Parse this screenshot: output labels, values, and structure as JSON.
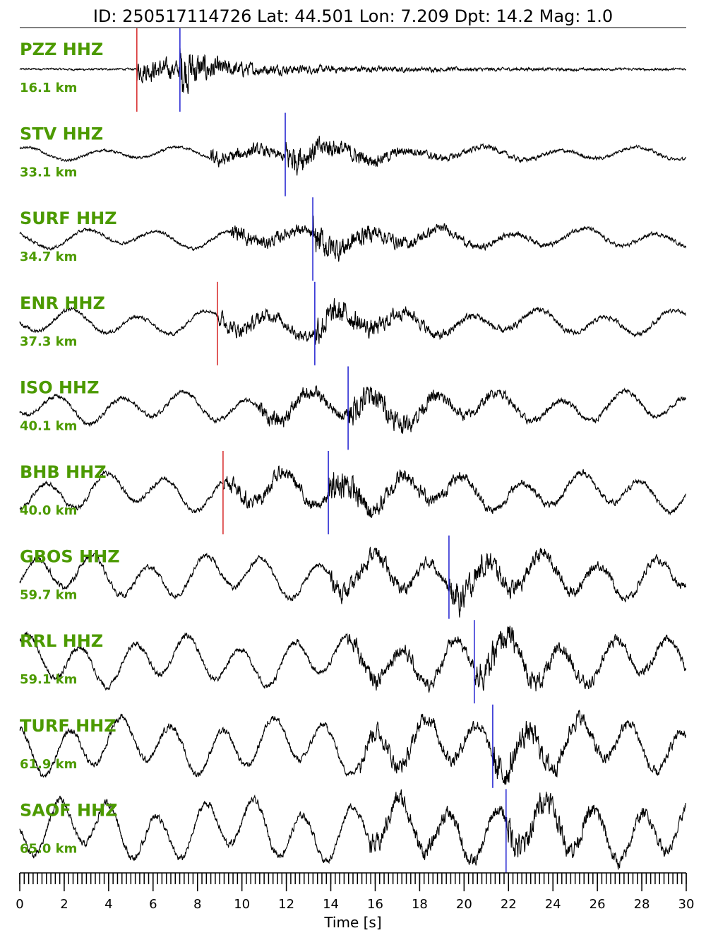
{
  "chart_data": {
    "type": "seismogram",
    "title": "ID: 250517114726 Lat:  44.501 Lon:   7.209 Dpt:    14.2 Mag:   1.0",
    "x_label": "Time [s]",
    "xlim": [
      0,
      30
    ],
    "xticks": [
      0,
      2,
      4,
      6,
      8,
      10,
      12,
      14,
      16,
      18,
      20,
      22,
      24,
      26,
      28,
      30
    ],
    "p_color": "#d62728",
    "s_color": "#1f1fd0",
    "traces": [
      {
        "station": "PZZ HHZ",
        "distance": "16.1 km",
        "p_pick": 5.27,
        "s_pick": 7.21
      },
      {
        "station": "STV HHZ",
        "distance": "33.1 km",
        "p_pick": null,
        "s_pick": 11.95
      },
      {
        "station": "SURF HHZ",
        "distance": "34.7 km",
        "p_pick": null,
        "s_pick": 13.19
      },
      {
        "station": "ENR HHZ",
        "distance": "37.3 km",
        "p_pick": 8.9,
        "s_pick": 13.28
      },
      {
        "station": "ISO HHZ",
        "distance": "40.1 km",
        "p_pick": null,
        "s_pick": 14.78
      },
      {
        "station": "BHB HHZ",
        "distance": "40.0 km",
        "p_pick": 9.15,
        "s_pick": 13.89
      },
      {
        "station": "GBOS HHZ",
        "distance": "59.7 km",
        "p_pick": null,
        "s_pick": 19.32
      },
      {
        "station": "RRL HHZ",
        "distance": "59.1 km",
        "p_pick": null,
        "s_pick": 20.46
      },
      {
        "station": "TURF HHZ",
        "distance": "61.9 km",
        "p_pick": null,
        "s_pick": 21.29
      },
      {
        "station": "SAOF HHZ",
        "distance": "65.0 km",
        "p_pick": null,
        "s_pick": 21.89
      }
    ]
  }
}
